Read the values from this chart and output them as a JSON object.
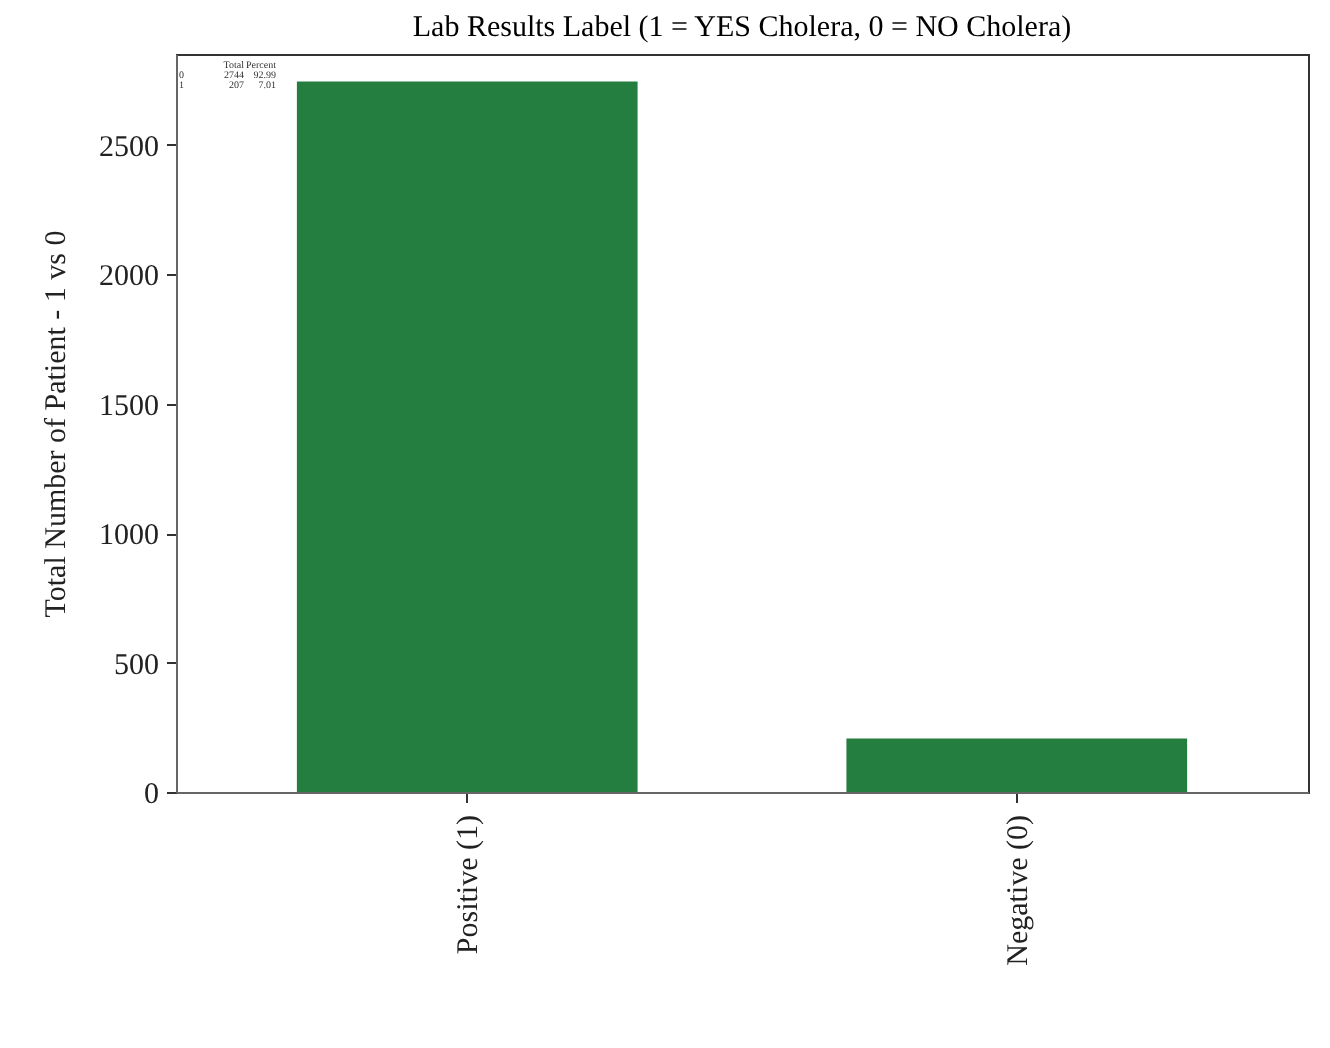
{
  "chart_data": {
    "type": "bar",
    "title": "Lab Results Label (1 = YES Cholera, 0 = NO Cholera)",
    "ylabel": "Total Number of Patient - 1 vs 0",
    "categories": [
      "Positive (1)",
      "Negative (0)"
    ],
    "values": [
      2744,
      207
    ],
    "color": "#247e3f",
    "ylim": [
      0,
      2850
    ],
    "yticks": [
      0,
      500,
      1000,
      1500,
      2000,
      2500
    ],
    "grid": false,
    "annotations": [
      "Total",
      "Percent",
      "0",
      "2744",
      "92.99",
      "1",
      "207",
      "7.01"
    ]
  }
}
